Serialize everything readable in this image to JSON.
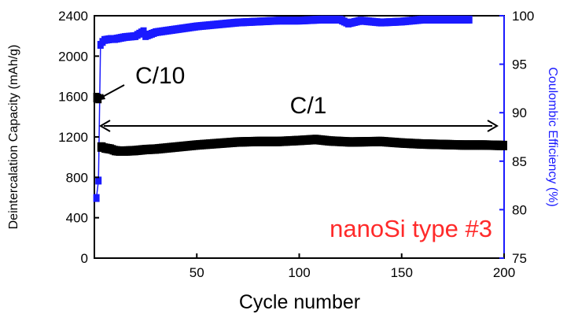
{
  "chart_data": {
    "type": "scatter",
    "xlabel": "Cycle number",
    "ylabel_left": "Deintercalation Capacity (mAh/g)",
    "ylabel_right": "Coulombic Efficiency (%)",
    "xlim": [
      0,
      200
    ],
    "ylim_left": [
      0,
      2400
    ],
    "ylim_right": [
      75,
      100
    ],
    "x_ticks": [
      50,
      100,
      150,
      200
    ],
    "y_left_ticks": [
      0,
      400,
      800,
      1200,
      1600,
      2000,
      2400
    ],
    "y_right_ticks": [
      75,
      80,
      85,
      90,
      95,
      100
    ],
    "grid": false,
    "annotations": {
      "c10": "C/10",
      "c1": "C/1",
      "label": "nanoSi type #3"
    },
    "colors": {
      "capacity": "#000000",
      "efficiency": "#1a1aff",
      "label": "#ff2a2a",
      "right_axis": "#1a1aff"
    },
    "series": [
      {
        "axis": "left",
        "x": [
          1,
          2,
          3,
          4,
          5,
          8,
          10,
          12,
          15,
          20,
          25,
          30,
          40,
          50,
          60,
          70,
          80,
          90,
          100,
          108,
          115,
          125,
          140,
          150,
          160,
          170,
          180,
          190,
          200
        ],
        "values": [
          1590,
          1580,
          1100,
          1100,
          1090,
          1080,
          1065,
          1060,
          1060,
          1065,
          1075,
          1080,
          1100,
          1120,
          1135,
          1150,
          1155,
          1155,
          1165,
          1175,
          1160,
          1150,
          1155,
          1140,
          1130,
          1125,
          1120,
          1120,
          1115
        ]
      },
      {
        "axis": "right",
        "x": [
          1,
          2,
          3,
          4,
          5,
          8,
          10,
          15,
          20,
          24,
          25,
          30,
          40,
          50,
          60,
          70,
          80,
          90,
          100,
          110,
          120,
          124,
          130,
          140,
          150,
          160,
          170,
          180,
          183
        ],
        "values": [
          81.2,
          83.0,
          97.0,
          97.3,
          97.5,
          97.6,
          97.6,
          97.8,
          97.9,
          98.4,
          97.9,
          98.3,
          98.6,
          98.9,
          99.1,
          99.3,
          99.4,
          99.5,
          99.5,
          99.6,
          99.6,
          99.2,
          99.5,
          99.3,
          99.4,
          99.6,
          99.6,
          99.6,
          99.6
        ]
      }
    ]
  }
}
